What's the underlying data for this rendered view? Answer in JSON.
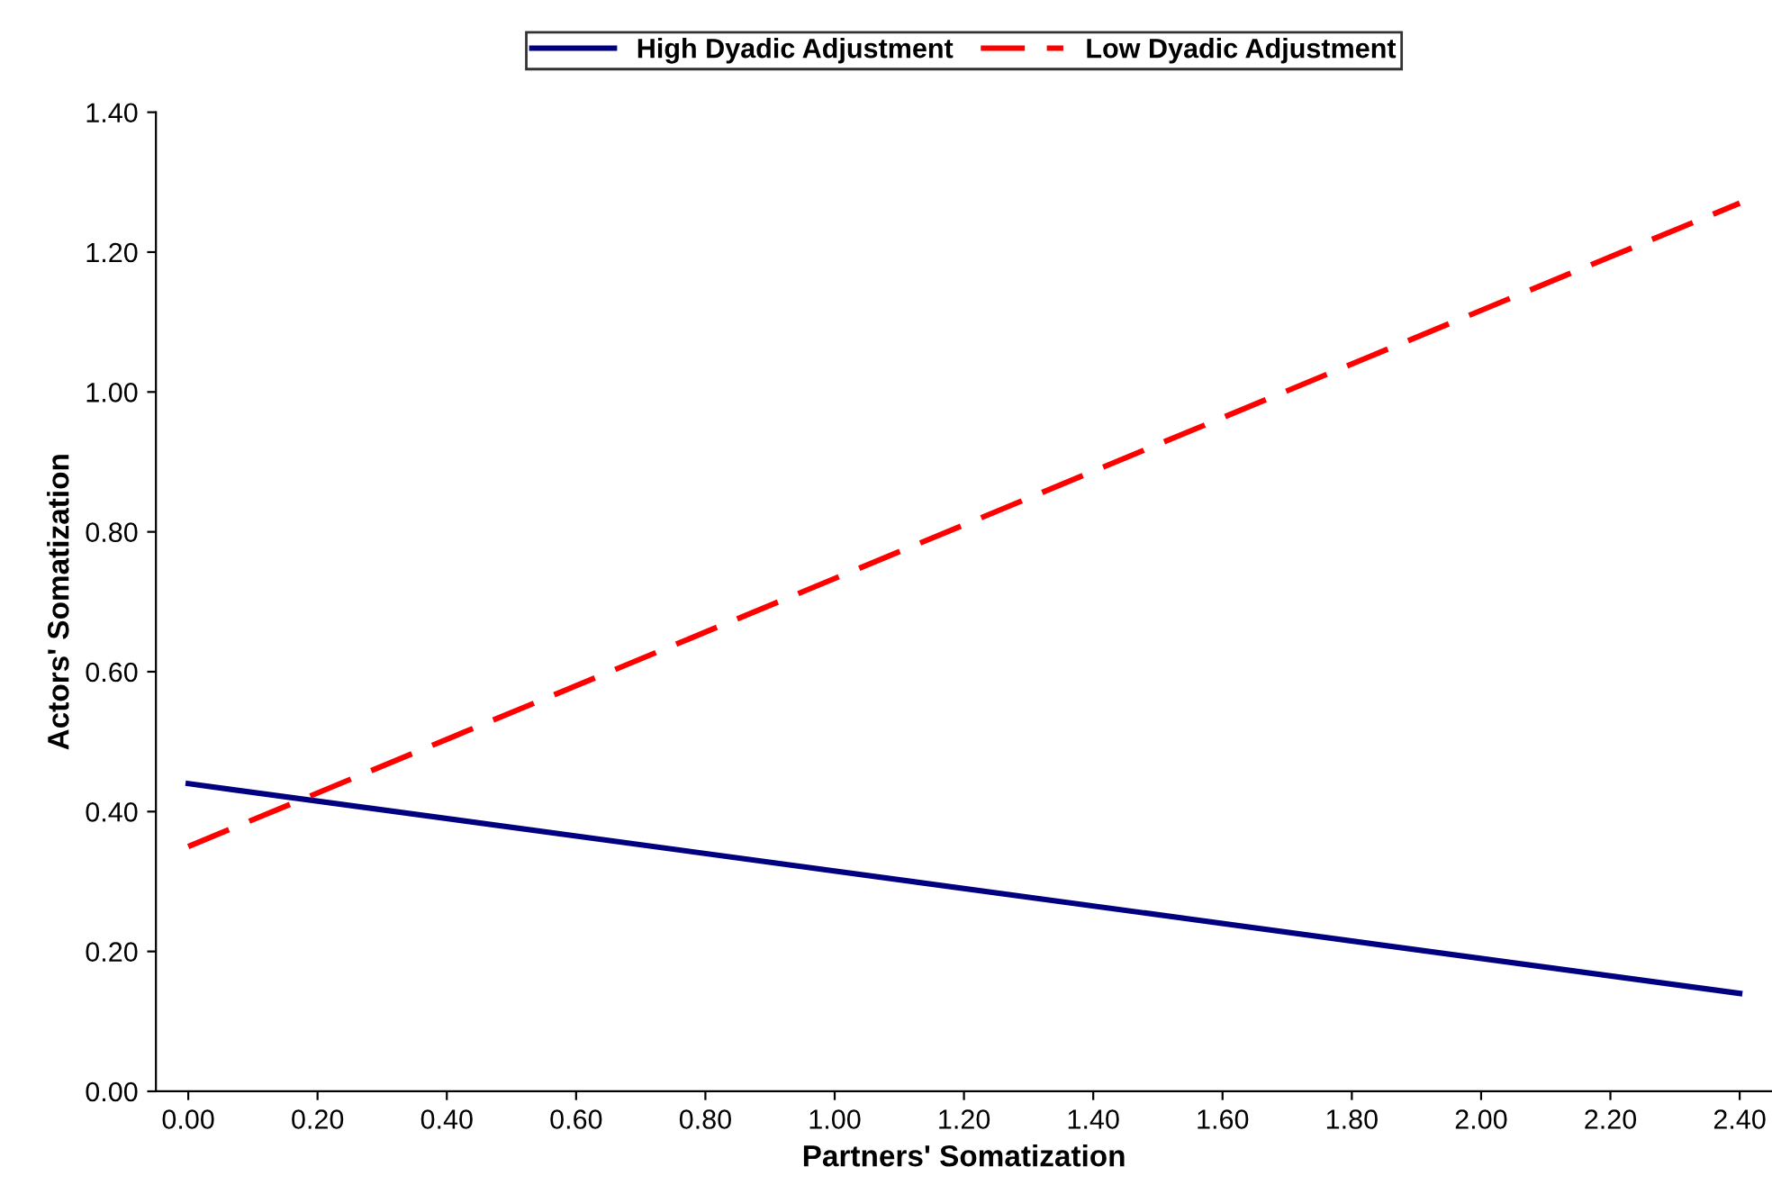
{
  "chart_data": {
    "type": "line",
    "xlabel": "Partners' Somatization",
    "ylabel": "Actors' Somatization",
    "x": [
      0.0,
      2.4
    ],
    "series": [
      {
        "name": "High Dyadic Adjustment",
        "color": "#000080",
        "values": [
          0.44,
          0.14
        ],
        "line_style": "solid"
      },
      {
        "name": "Low Dyadic Adjustment",
        "color": "#ff0000",
        "values": [
          0.35,
          1.27
        ],
        "line_style": "dashed"
      }
    ],
    "xlim": [
      -0.05,
      2.45
    ],
    "xticks": [
      {
        "value": 0,
        "label": "0.00"
      },
      {
        "value": 0.2,
        "label": "0.20"
      },
      {
        "value": 0.4,
        "label": "0.40"
      },
      {
        "value": 0.6,
        "label": "0.60"
      },
      {
        "value": 0.8,
        "label": "0.80"
      },
      {
        "value": 1.0,
        "label": "1.00"
      },
      {
        "value": 1.2,
        "label": "1.20"
      },
      {
        "value": 1.4,
        "label": "1.40"
      },
      {
        "value": 1.6,
        "label": "1.60"
      },
      {
        "value": 1.8,
        "label": "1.80"
      },
      {
        "value": 2.0,
        "label": "2.00"
      },
      {
        "value": 2.2,
        "label": "2.20"
      },
      {
        "value": 2.4,
        "label": "2.40"
      }
    ],
    "ylim": [
      0,
      1.4
    ],
    "yticks": [
      {
        "value": 0,
        "label": "0.00"
      },
      {
        "value": 0.2,
        "label": "0.20"
      },
      {
        "value": 0.4,
        "label": "0.40"
      },
      {
        "value": 0.6,
        "label": "0.60"
      },
      {
        "value": 0.8,
        "label": "0.80"
      },
      {
        "value": 1.0,
        "label": "1.00"
      },
      {
        "value": 1.2,
        "label": "1.20"
      },
      {
        "value": 1.4,
        "label": "1.40"
      }
    ],
    "grid": false,
    "legend": "top",
    "marker": "none"
  }
}
